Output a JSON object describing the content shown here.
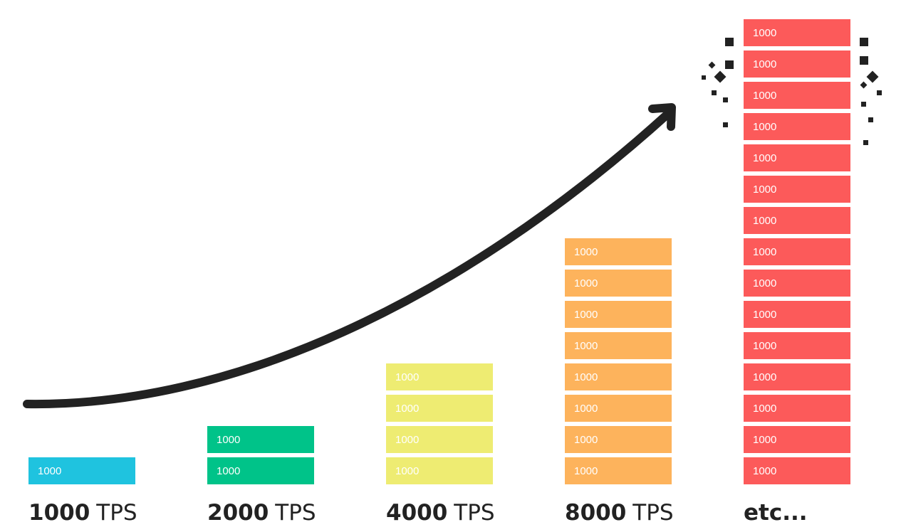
{
  "columns": [
    {
      "label_bold": "1000",
      "label_rest": "TPS",
      "color": "#1fc3df",
      "blocks": [
        "1000"
      ]
    },
    {
      "label_bold": "2000",
      "label_rest": "TPS",
      "color": "#00c389",
      "blocks": [
        "1000",
        "1000"
      ]
    },
    {
      "label_bold": "4000",
      "label_rest": "TPS",
      "color": "#eeec72",
      "blocks": [
        "1000",
        "1000",
        "1000",
        "1000"
      ]
    },
    {
      "label_bold": "8000",
      "label_rest": "TPS",
      "color": "#fdb35c",
      "blocks": [
        "1000",
        "1000",
        "1000",
        "1000",
        "1000",
        "1000",
        "1000",
        "1000"
      ]
    },
    {
      "label_bold": "etc...",
      "color": "#fc5a5a",
      "blocks": [
        "1000",
        "1000",
        "1000",
        "1000",
        "1000",
        "1000",
        "1000",
        "1000",
        "1000",
        "1000",
        "1000",
        "1000",
        "1000",
        "1000",
        "1000"
      ]
    }
  ]
}
